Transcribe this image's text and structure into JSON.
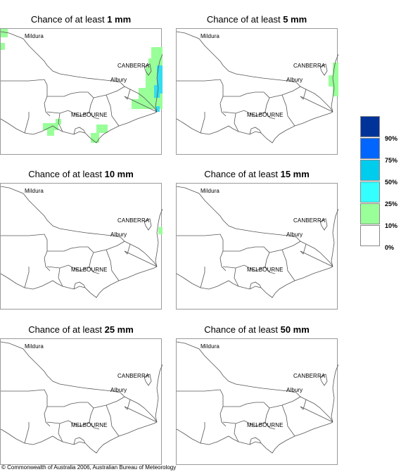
{
  "panels": [
    {
      "prefix": "Chance of at least ",
      "amount": "1 mm"
    },
    {
      "prefix": "Chance of at least ",
      "amount": "5 mm"
    },
    {
      "prefix": "Chance of at least ",
      "amount": "10 mm"
    },
    {
      "prefix": "Chance of at least ",
      "amount": "15 mm"
    },
    {
      "prefix": "Chance of at least ",
      "amount": "25 mm"
    },
    {
      "prefix": "Chance of at least ",
      "amount": "50 mm"
    }
  ],
  "places": {
    "mildura": "Mildura",
    "canberra": "CANBERRA",
    "albury": "Albury",
    "melbourne": "MELBOURNE"
  },
  "legend": {
    "ticks": [
      "90%",
      "75%",
      "50%",
      "25%",
      "10%",
      "0%"
    ],
    "colors": [
      "#003399",
      "#0066ff",
      "#00ccee",
      "#33ffff",
      "#99ff99",
      "#ffffff"
    ]
  },
  "copyright": "© Commonwealth of Australia 2006, Australian Bureau of Meteorology"
}
